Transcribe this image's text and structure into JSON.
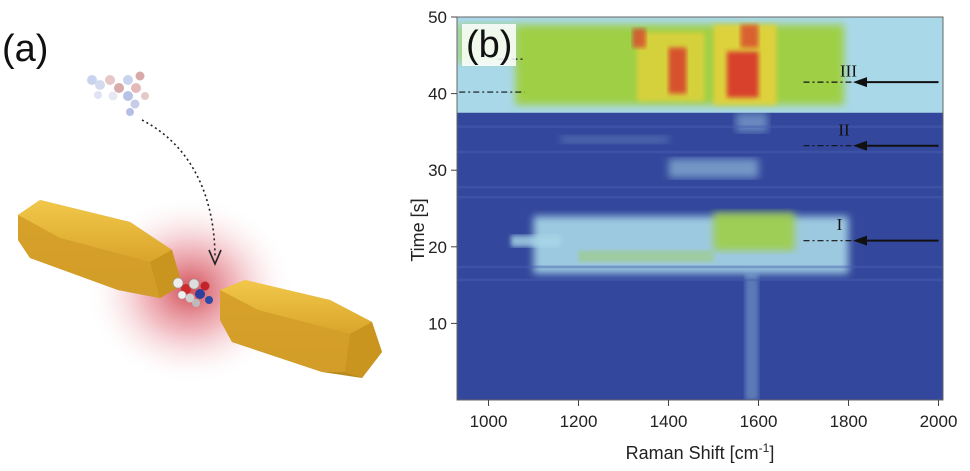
{
  "panel_a": {
    "label": "(a)"
  },
  "panel_b": {
    "label": "(b)"
  },
  "chart_data": {
    "type": "heatmap",
    "title": "",
    "xlabel": "Raman Shift [cm-1]",
    "xlabel_main": "Raman Shift [cm",
    "xlabel_sup": "-1",
    "xlabel_end": "]",
    "ylabel": "Time [s]",
    "xlim": [
      930,
      2010
    ],
    "ylim": [
      0,
      50
    ],
    "x_ticks": [
      1000,
      1200,
      1400,
      1600,
      1800,
      2000
    ],
    "y_ticks": [
      10,
      20,
      30,
      40,
      50
    ],
    "annotations": [
      {
        "text": "III",
        "x": 1800,
        "y": 42.2
      },
      {
        "text": "II",
        "x": 1790,
        "y": 34.5
      },
      {
        "text": "I",
        "x": 1780,
        "y": 22.2
      }
    ],
    "arrows": [
      {
        "x_tail": 2000,
        "x_head": 1810,
        "y": 41.5
      },
      {
        "x_tail": 2000,
        "x_head": 1810,
        "y": 33.2
      },
      {
        "x_tail": 2000,
        "x_head": 1810,
        "y": 20.8
      }
    ],
    "colors": {
      "background": "#33479c",
      "light": "#a9d8e8",
      "green": "#9fcf3e",
      "yellow": "#e8d23a",
      "red": "#d8322a"
    }
  }
}
